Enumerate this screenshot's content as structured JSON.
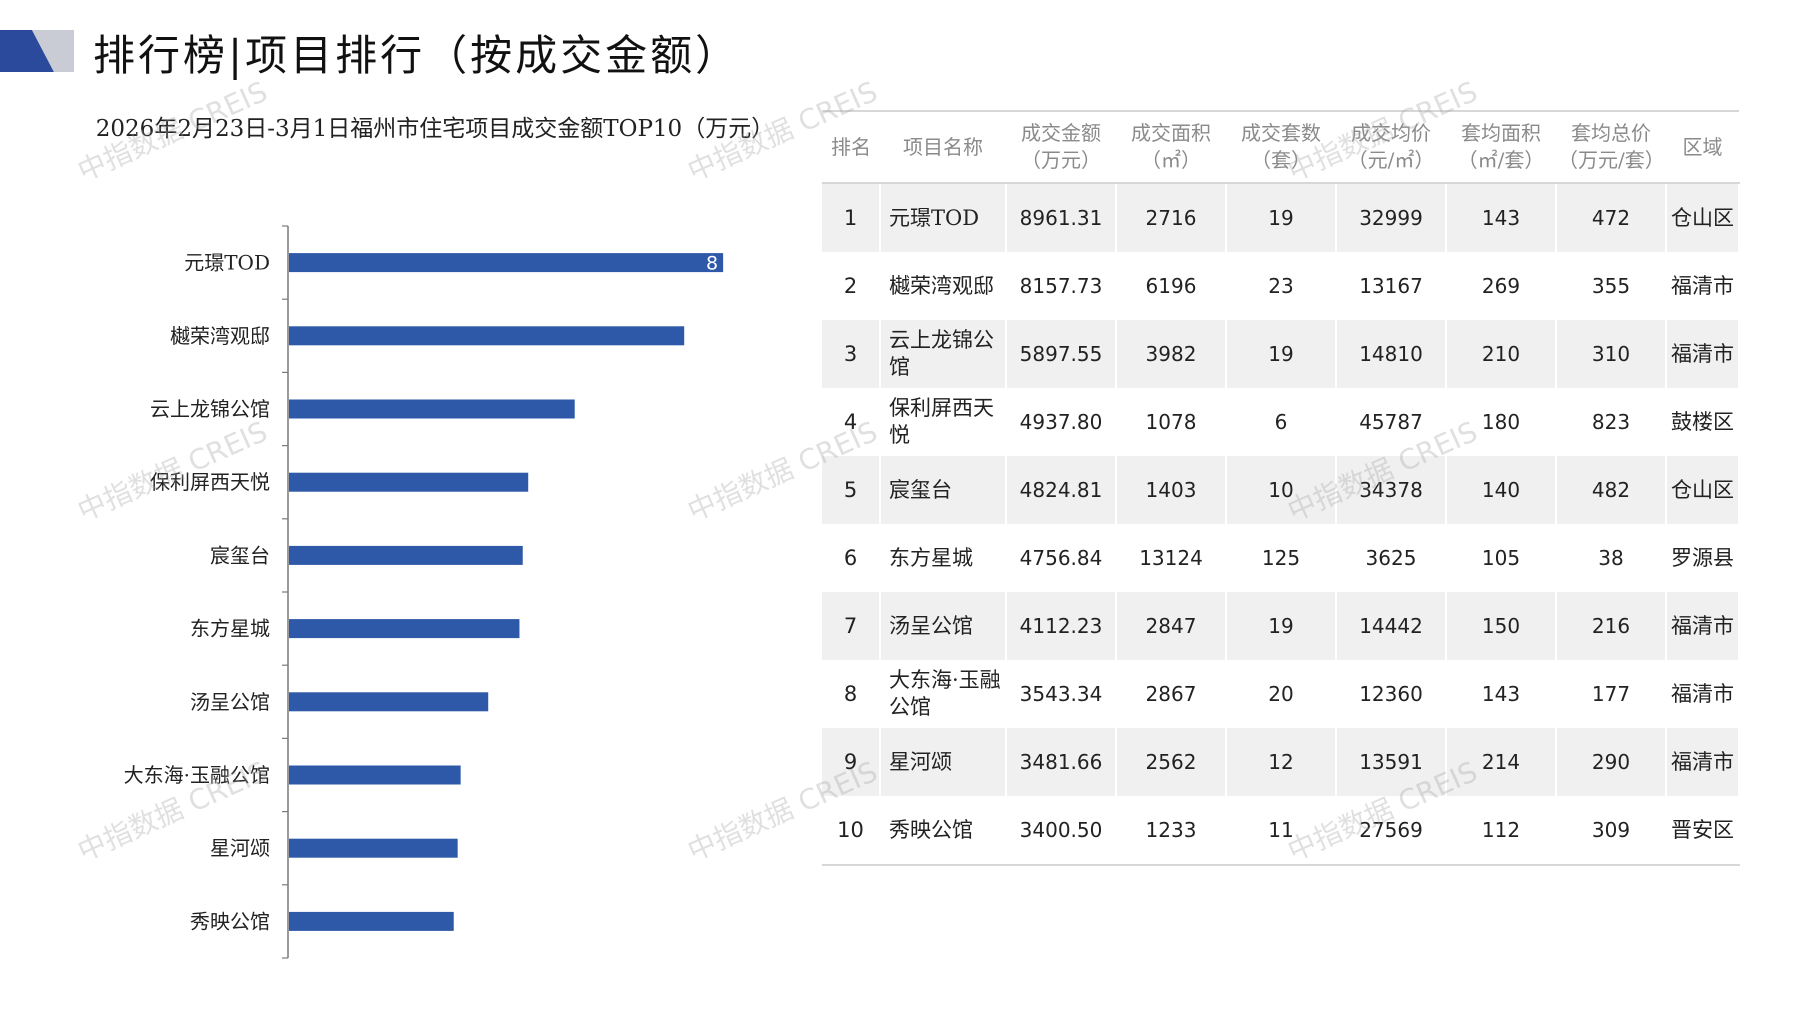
{
  "header": {
    "title": "排行榜|项目排行（按成交金额）",
    "logo_colors": {
      "dark": "#2b4a9b",
      "light": "#c9ccd4"
    }
  },
  "watermark": {
    "text": "中指数据 CREIS"
  },
  "chart_data": {
    "type": "bar",
    "orientation": "horizontal",
    "title": "2026年2月23日-3月1日福州市住宅项目成交金额TOP10（万元）",
    "categories": [
      "元璟TOD",
      "樾荣湾观邸",
      "云上龙锦公馆",
      "保利屏西天悦",
      "宸玺台",
      "东方星城",
      "汤呈公馆",
      "大东海·玉融公馆",
      "星河颂",
      "秀映公馆"
    ],
    "values": [
      8961.31,
      8157.73,
      5897.55,
      4937.8,
      4824.81,
      4756.84,
      4112.23,
      3543.34,
      3481.66,
      3400.5
    ],
    "visible_data_label": "8",
    "xlim": [
      0,
      9000
    ],
    "bar_color": "#2e58a8",
    "axis_color": "#7a7a7a",
    "grid": false
  },
  "table": {
    "headers": [
      [
        "排名"
      ],
      [
        "项目名称"
      ],
      [
        "成交金额",
        "（万元）"
      ],
      [
        "成交面积",
        "（㎡）"
      ],
      [
        "成交套数",
        "（套）"
      ],
      [
        "成交均价",
        "（元/㎡）"
      ],
      [
        "套均面积",
        "（㎡/套）"
      ],
      [
        "套均总价",
        "（万元/套）"
      ],
      [
        "区域"
      ]
    ],
    "rows": [
      [
        "1",
        "元璟TOD",
        "8961.31",
        "2716",
        "19",
        "32999",
        "143",
        "472",
        "仓山区"
      ],
      [
        "2",
        "樾荣湾观邸",
        "8157.73",
        "6196",
        "23",
        "13167",
        "269",
        "355",
        "福清市"
      ],
      [
        "3",
        "云上龙锦公馆",
        "5897.55",
        "3982",
        "19",
        "14810",
        "210",
        "310",
        "福清市"
      ],
      [
        "4",
        "保利屏西天悦",
        "4937.80",
        "1078",
        "6",
        "45787",
        "180",
        "823",
        "鼓楼区"
      ],
      [
        "5",
        "宸玺台",
        "4824.81",
        "1403",
        "10",
        "34378",
        "140",
        "482",
        "仓山区"
      ],
      [
        "6",
        "东方星城",
        "4756.84",
        "13124",
        "125",
        "3625",
        "105",
        "38",
        "罗源县"
      ],
      [
        "7",
        "汤呈公馆",
        "4112.23",
        "2847",
        "19",
        "14442",
        "150",
        "216",
        "福清市"
      ],
      [
        "8",
        "大东海·玉融公馆",
        "3543.34",
        "2867",
        "20",
        "12360",
        "143",
        "177",
        "福清市"
      ],
      [
        "9",
        "星河颂",
        "3481.66",
        "2562",
        "12",
        "13591",
        "214",
        "290",
        "福清市"
      ],
      [
        "10",
        "秀映公馆",
        "3400.50",
        "1233",
        "11",
        "27569",
        "112",
        "309",
        "晋安区"
      ]
    ]
  }
}
